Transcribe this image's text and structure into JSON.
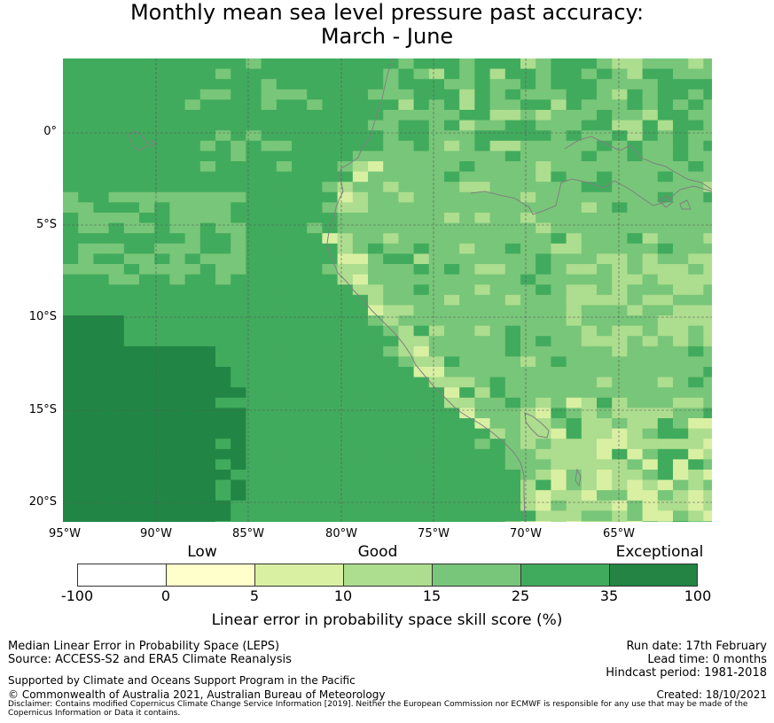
{
  "title": {
    "line1": "Monthly mean sea level pressure past accuracy:",
    "line2": "March - June"
  },
  "map": {
    "lat_labels": [
      "0°",
      "5°S",
      "10°S",
      "15°S",
      "20°S"
    ],
    "lon_labels": [
      "95°W",
      "90°W",
      "85°W",
      "80°W",
      "75°W",
      "70°W",
      "65°W"
    ],
    "colors": {
      "ocean_dark": "#218645",
      "green_35": "#41ab5d",
      "green_25": "#78c679",
      "green_15": "#addd8e",
      "green_10": "#d9f0a3",
      "green_5": "#ffffcc",
      "coast": "#808080",
      "grid": "#555555"
    }
  },
  "legend": {
    "categories": [
      "Low",
      "Good",
      "Exceptional"
    ],
    "ticks": [
      "-100",
      "0",
      "5",
      "10",
      "15",
      "25",
      "35",
      "100"
    ],
    "colors": [
      "#ffffff",
      "#ffffcc",
      "#d9f0a3",
      "#addd8e",
      "#78c679",
      "#41ab5d",
      "#238443"
    ],
    "label": "Linear error in probability space skill score (%)"
  },
  "footer": {
    "left1": "Median Linear Error in Probability Space (LEPS)",
    "left2": "Source: ACCESS-S2 and ERA5 Climate Reanalysis",
    "support": "Supported by Climate and Oceans Support Program in the Pacific",
    "copyright": "© Commonwealth of Australia 2021, Australian Bureau of Meteorology",
    "run_date": "Run date: 17th February",
    "lead_time": "Lead time: 0 months",
    "hindcast": "Hindcast period: 1981-2018",
    "created": "Created: 18/10/2021",
    "disclaimer": "Disclaimer: Contains modified Copernicus Climate Change Service Information [2019]. Neither the European Commission nor ECMWF is responsible for any use that may be made of the Copernicus Information or Data it contains."
  }
}
